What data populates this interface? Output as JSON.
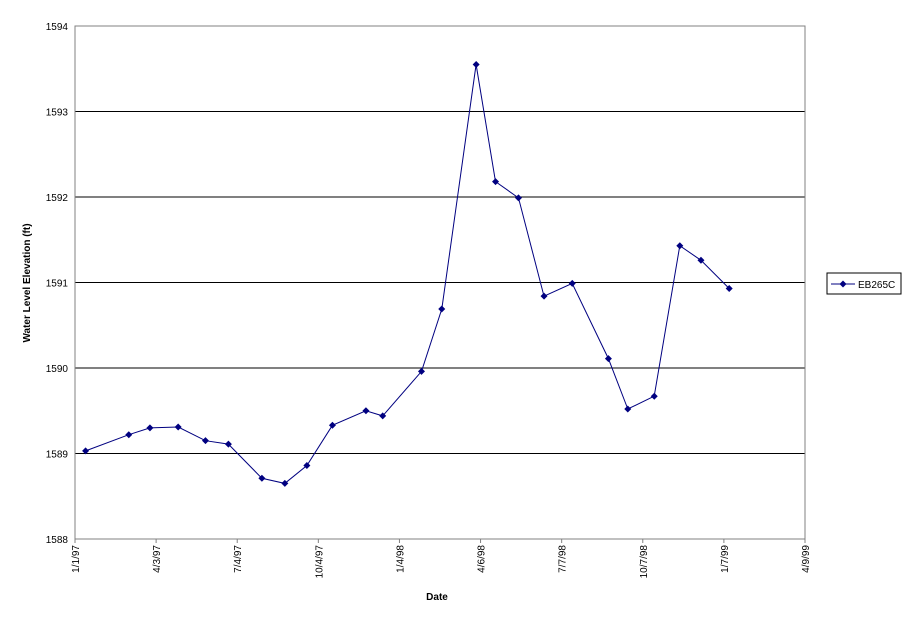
{
  "chart_data": {
    "type": "line",
    "xlabel": "Date",
    "ylabel": "Water Level Elevation (ft)",
    "ylim": [
      1588,
      1594
    ],
    "xlim": [
      "1997-01-01",
      "1999-04-09"
    ],
    "y_ticks": [
      1588,
      1589,
      1590,
      1591,
      1592,
      1593,
      1594
    ],
    "x_ticks": [
      {
        "date": "1997-01-01",
        "label": "1/1/97"
      },
      {
        "date": "1997-04-03",
        "label": "4/3/97"
      },
      {
        "date": "1997-07-04",
        "label": "7/4/97"
      },
      {
        "date": "1997-10-04",
        "label": "10/4/97"
      },
      {
        "date": "1998-01-04",
        "label": "1/4/98"
      },
      {
        "date": "1998-04-06",
        "label": "4/6/98"
      },
      {
        "date": "1998-07-07",
        "label": "7/7/98"
      },
      {
        "date": "1998-10-07",
        "label": "10/7/98"
      },
      {
        "date": "1999-01-07",
        "label": "1/7/99"
      },
      {
        "date": "1999-04-09",
        "label": "4/9/99"
      }
    ],
    "grid": "horizontal major gridlines",
    "legend_position": "right",
    "series": [
      {
        "name": "EB265C",
        "color": "#000080",
        "marker": "diamond",
        "points": [
          {
            "x": "1997-01-13",
            "y": 1589.03
          },
          {
            "x": "1997-03-03",
            "y": 1589.22
          },
          {
            "x": "1997-03-27",
            "y": 1589.3
          },
          {
            "x": "1997-04-28",
            "y": 1589.31
          },
          {
            "x": "1997-05-29",
            "y": 1589.15
          },
          {
            "x": "1997-06-24",
            "y": 1589.11
          },
          {
            "x": "1997-08-01",
            "y": 1588.71
          },
          {
            "x": "1997-08-27",
            "y": 1588.65
          },
          {
            "x": "1997-09-21",
            "y": 1588.86
          },
          {
            "x": "1997-10-20",
            "y": 1589.33
          },
          {
            "x": "1997-11-27",
            "y": 1589.5
          },
          {
            "x": "1997-12-16",
            "y": 1589.44
          },
          {
            "x": "1998-01-29",
            "y": 1589.96
          },
          {
            "x": "1998-02-21",
            "y": 1590.69
          },
          {
            "x": "1998-04-01",
            "y": 1593.55
          },
          {
            "x": "1998-04-23",
            "y": 1592.18
          },
          {
            "x": "1998-05-19",
            "y": 1591.99
          },
          {
            "x": "1998-06-17",
            "y": 1590.84
          },
          {
            "x": "1998-07-19",
            "y": 1590.99
          },
          {
            "x": "1998-08-29",
            "y": 1590.11
          },
          {
            "x": "1998-09-20",
            "y": 1589.52
          },
          {
            "x": "1998-10-20",
            "y": 1589.67
          },
          {
            "x": "1998-11-18",
            "y": 1591.43
          },
          {
            "x": "1998-12-12",
            "y": 1591.26
          },
          {
            "x": "1999-01-13",
            "y": 1590.93
          }
        ]
      }
    ]
  }
}
